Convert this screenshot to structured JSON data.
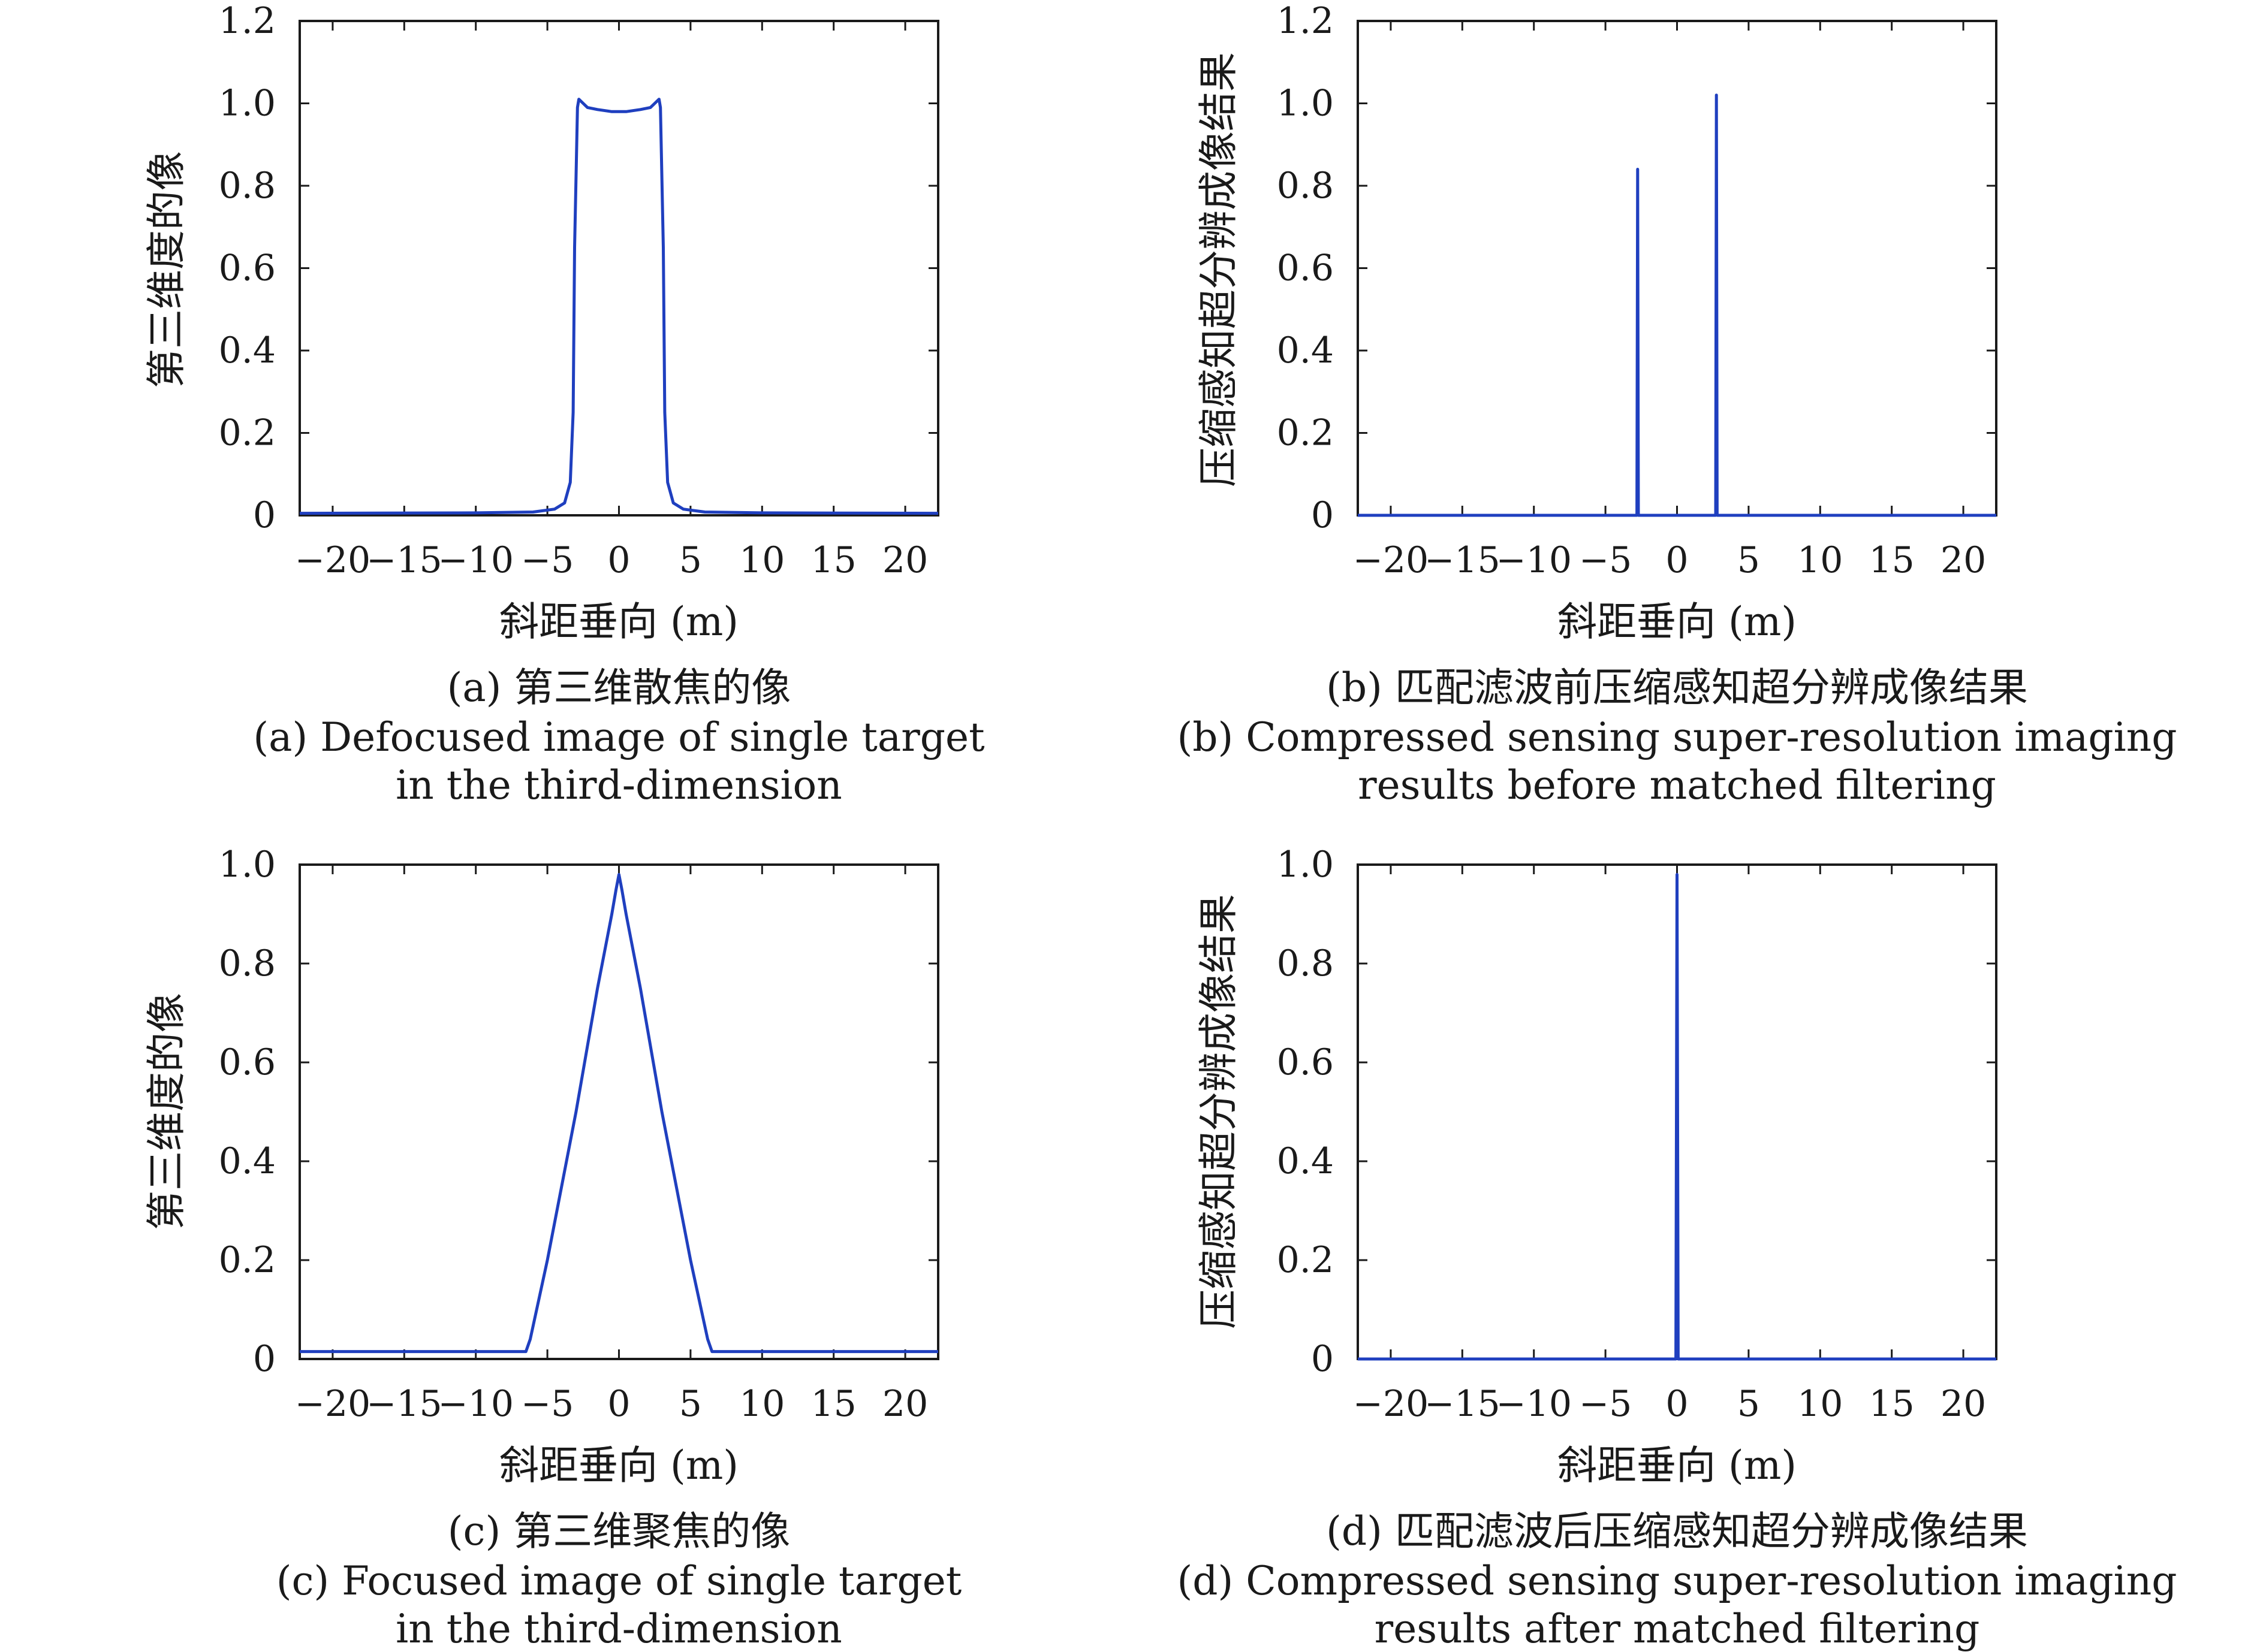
{
  "chart_data": [
    {
      "type": "line",
      "panel": "a",
      "ylabel": "第三维度的像",
      "xlabel": "斜距垂向 (m)",
      "xlim": [
        -22.3,
        22.3
      ],
      "ylim": [
        0,
        1.2
      ],
      "x_ticks": [
        "−20",
        "−15",
        "−10",
        "−5",
        "0",
        "5",
        "10",
        "15",
        "20"
      ],
      "y_ticks": [
        "0",
        "0.2",
        "0.4",
        "0.6",
        "0.8",
        "1.0",
        "1.2"
      ],
      "caption_cn": "(a) 第三维散焦的像",
      "caption_en": [
        "(a) Defocused image of single target",
        "in the third-dimension"
      ],
      "series_color": "#1f3fbf",
      "x": [
        -22.3,
        -10,
        -6,
        -4.5,
        -3.8,
        -3.4,
        -3.2,
        -3.1,
        -3.0,
        -2.9,
        -2.8,
        -2.5,
        -2.2,
        -1.5,
        -0.5,
        0,
        0.5,
        1.5,
        2.2,
        2.5,
        2.8,
        2.9,
        3.0,
        3.1,
        3.2,
        3.4,
        3.8,
        4.5,
        6,
        10,
        22.3
      ],
      "values": [
        0.005,
        0.006,
        0.008,
        0.015,
        0.03,
        0.08,
        0.25,
        0.65,
        0.82,
        0.99,
        1.01,
        1.0,
        0.99,
        0.985,
        0.98,
        0.98,
        0.98,
        0.985,
        0.99,
        1.0,
        1.01,
        0.99,
        0.82,
        0.65,
        0.25,
        0.08,
        0.03,
        0.015,
        0.008,
        0.006,
        0.005
      ]
    },
    {
      "type": "line",
      "panel": "b",
      "ylabel": "压缩感知超分辨成像结果",
      "xlabel": "斜距垂向 (m)",
      "xlim": [
        -22.3,
        22.3
      ],
      "ylim": [
        0,
        1.2
      ],
      "x_ticks": [
        "−20",
        "−15",
        "−10",
        "−5",
        "0",
        "5",
        "10",
        "15",
        "20"
      ],
      "y_ticks": [
        "0",
        "0.2",
        "0.4",
        "0.6",
        "0.8",
        "1.0",
        "1.2"
      ],
      "caption_cn": "(b) 匹配滤波前压缩感知超分辨成像结果",
      "caption_en": [
        "(b) Compressed sensing super-resolution imaging",
        "results before matched filtering"
      ],
      "series_color": "#1f3fbf",
      "x": [
        -22.3,
        -2.8,
        -2.75,
        -2.7,
        2.7,
        2.75,
        2.8,
        22.3
      ],
      "values": [
        0,
        0,
        0.84,
        0,
        0,
        1.02,
        0,
        0
      ]
    },
    {
      "type": "line",
      "panel": "c",
      "ylabel": "第三维度的像",
      "xlabel": "斜距垂向 (m)",
      "xlim": [
        -22.3,
        22.3
      ],
      "ylim": [
        0,
        1.0
      ],
      "x_ticks": [
        "−20",
        "−15",
        "−10",
        "−5",
        "0",
        "5",
        "10",
        "15",
        "20"
      ],
      "y_ticks": [
        "0",
        "0.2",
        "0.4",
        "0.6",
        "0.8",
        "1.0"
      ],
      "caption_cn": "(c) 第三维聚焦的像",
      "caption_en": [
        "(c) Focused image of single target",
        "in the third-dimension"
      ],
      "series_color": "#1f3fbf",
      "x": [
        -22.3,
        -6.5,
        -6.2,
        -5,
        -3,
        -1.5,
        -0.5,
        -0.2,
        0,
        0.2,
        0.5,
        1.5,
        3,
        5,
        6.2,
        6.5,
        22.3
      ],
      "values": [
        0.015,
        0.015,
        0.04,
        0.2,
        0.5,
        0.75,
        0.9,
        0.95,
        0.98,
        0.95,
        0.9,
        0.75,
        0.5,
        0.2,
        0.04,
        0.015,
        0.015
      ]
    },
    {
      "type": "line",
      "panel": "d",
      "ylabel": "压缩感知超分辨成像结果",
      "xlabel": "斜距垂向 (m)",
      "xlim": [
        -22.3,
        22.3
      ],
      "ylim": [
        0,
        1.0
      ],
      "x_ticks": [
        "−20",
        "−15",
        "−10",
        "−5",
        "0",
        "5",
        "10",
        "15",
        "20"
      ],
      "y_ticks": [
        "0",
        "0.2",
        "0.4",
        "0.6",
        "0.8",
        "1.0"
      ],
      "caption_cn": "(d) 匹配滤波后压缩感知超分辨成像结果",
      "caption_en": [
        "(d) Compressed sensing super-resolution imaging",
        "results after matched filtering"
      ],
      "series_color": "#1f3fbf",
      "x": [
        -22.3,
        -0.08,
        0,
        0.08,
        22.3
      ],
      "values": [
        0,
        0,
        0.98,
        0,
        0
      ]
    }
  ]
}
